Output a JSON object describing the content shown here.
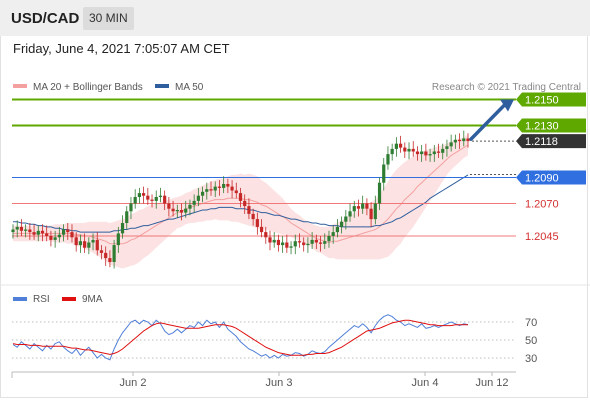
{
  "header": {
    "symbol": "USD/CAD",
    "timeframe": "30 MIN"
  },
  "datetime": "Friday, June 4, 2021 7:05:07 AM CET",
  "legend": [
    {
      "label": "MA 20 + Bollinger Bands",
      "color": "#f4a0a0"
    },
    {
      "label": "MA 50",
      "color": "#2f5e9e"
    }
  ],
  "copyright": "Research © 2021 Trading Central",
  "colors": {
    "up": "#2e7d32",
    "down": "#c62828",
    "resistance": "#5fa800",
    "pivot": "#2f6fe0",
    "support": "#f07878",
    "arrow": "#2f5e9e",
    "rsi": "#4f7fd8",
    "rsi_ma": "#e01010"
  },
  "chart_data": [
    {
      "type": "candlestick",
      "symbol": "USD/CAD",
      "timeframe": "30 MIN",
      "x_ticks": [
        "Jun 2",
        "Jun 3",
        "Jun 4",
        "Jun 12"
      ],
      "ylim": [
        1.2005,
        1.2165
      ],
      "current_price": "1.2118",
      "levels": [
        {
          "value": 1.215,
          "label": "1.2150",
          "kind": "resistance"
        },
        {
          "value": 1.213,
          "label": "1.2130",
          "kind": "resistance"
        },
        {
          "value": 1.209,
          "label": "1.2090",
          "kind": "pivot"
        },
        {
          "value": 1.207,
          "label": "1.2070",
          "kind": "support"
        },
        {
          "value": 1.2045,
          "label": "1.2045",
          "kind": "support"
        }
      ],
      "close_series": [
        1.205,
        1.2052,
        1.2049,
        1.205,
        1.2048,
        1.2046,
        1.2049,
        1.2047,
        1.2045,
        1.2042,
        1.2044,
        1.2046,
        1.205,
        1.2048,
        1.2044,
        1.2038,
        1.2041,
        1.2036,
        1.204,
        1.2042,
        1.2034,
        1.2032,
        1.2028,
        1.2025,
        1.2038,
        1.2047,
        1.2055,
        1.2064,
        1.207,
        1.2075,
        1.2078,
        1.2076,
        1.2073,
        1.2072,
        1.2075,
        1.2076,
        1.207,
        1.2066,
        1.2064,
        1.2065,
        1.2063,
        1.2066,
        1.2069,
        1.2072,
        1.2076,
        1.2079,
        1.2081,
        1.208,
        1.2083,
        1.2082,
        1.2085,
        1.2083,
        1.208,
        1.2078,
        1.2072,
        1.2068,
        1.2062,
        1.2058,
        1.2052,
        1.2048,
        1.2044,
        1.204,
        1.2042,
        1.2038,
        1.204,
        1.2036,
        1.2037,
        1.2041,
        1.204,
        1.2038,
        1.2039,
        1.2042,
        1.204,
        1.2039,
        1.2041,
        1.2045,
        1.2048,
        1.2052,
        1.2056,
        1.206,
        1.2064,
        1.2068,
        1.2066,
        1.207,
        1.2066,
        1.2058,
        1.207,
        1.2086,
        1.21,
        1.2108,
        1.2112,
        1.2116,
        1.2113,
        1.211,
        1.2112,
        1.211,
        1.2108,
        1.211,
        1.2107,
        1.2108,
        1.211,
        1.2109,
        1.2112,
        1.2114,
        1.2117,
        1.2119,
        1.2118,
        1.212,
        1.2118
      ],
      "ma20": [
        1.2047,
        1.2047,
        1.2047,
        1.2047,
        1.2047,
        1.2047,
        1.2047,
        1.2047,
        1.2047,
        1.2047,
        1.2047,
        1.2047,
        1.2047,
        1.2047,
        1.2047,
        1.2046,
        1.2046,
        1.2045,
        1.2045,
        1.2044,
        1.2043,
        1.2042,
        1.2041,
        1.2039,
        1.2039,
        1.2039,
        1.2039,
        1.204,
        1.2042,
        1.2043,
        1.2045,
        1.2047,
        1.2049,
        1.2051,
        1.2053,
        1.2055,
        1.2057,
        1.2059,
        1.2061,
        1.2063,
        1.2064,
        1.2066,
        1.2067,
        1.2068,
        1.2069,
        1.207,
        1.2071,
        1.2072,
        1.2073,
        1.2073,
        1.2073,
        1.2074,
        1.2074,
        1.2074,
        1.2074,
        1.2073,
        1.2073,
        1.2072,
        1.2071,
        1.2069,
        1.2068,
        1.2066,
        1.2064,
        1.2062,
        1.206,
        1.2058,
        1.2055,
        1.2053,
        1.2051,
        1.2049,
        1.2047,
        1.2045,
        1.2043,
        1.2042,
        1.2041,
        1.204,
        1.2041,
        1.2041,
        1.2042,
        1.2043,
        1.2044,
        1.2045,
        1.2046,
        1.2047,
        1.2048,
        1.2049,
        1.205,
        1.2052,
        1.2055,
        1.2058,
        1.2062,
        1.2066,
        1.2069,
        1.2073,
        1.2076,
        1.2079,
        1.2083,
        1.2086,
        1.2089,
        1.2092,
        1.2095,
        1.2098,
        1.2101,
        1.2104,
        1.2107,
        1.2109,
        1.2111,
        1.2113,
        1.2115
      ],
      "ma50": [
        1.2056,
        1.2056,
        1.2055,
        1.2055,
        1.2054,
        1.2054,
        1.2053,
        1.2053,
        1.2052,
        1.2052,
        1.2051,
        1.2051,
        1.205,
        1.205,
        1.2049,
        1.2049,
        1.2048,
        1.2048,
        1.2048,
        1.2048,
        1.2048,
        1.2048,
        1.2048,
        1.2048,
        1.2049,
        1.2049,
        1.205,
        1.205,
        1.2051,
        1.2051,
        1.2052,
        1.2053,
        1.2053,
        1.2054,
        1.2055,
        1.2056,
        1.2057,
        1.2058,
        1.2058,
        1.2059,
        1.206,
        1.2061,
        1.2062,
        1.2063,
        1.2064,
        1.2065,
        1.2065,
        1.2066,
        1.2066,
        1.2067,
        1.2067,
        1.2067,
        1.2067,
        1.2066,
        1.2066,
        1.2066,
        1.2065,
        1.2065,
        1.2064,
        1.2063,
        1.2063,
        1.2062,
        1.2061,
        1.2061,
        1.206,
        1.2059,
        1.2058,
        1.2058,
        1.2057,
        1.2056,
        1.2056,
        1.2055,
        1.2055,
        1.2054,
        1.2054,
        1.2053,
        1.2053,
        1.2053,
        1.2052,
        1.2052,
        1.2052,
        1.2052,
        1.2052,
        1.2052,
        1.2052,
        1.2052,
        1.2053,
        1.2053,
        1.2054,
        1.2055,
        1.2056,
        1.2058,
        1.2059,
        1.2061,
        1.2063,
        1.2065,
        1.2067,
        1.2069,
        1.2071,
        1.2074,
        1.2076,
        1.2078,
        1.208,
        1.2082,
        1.2084,
        1.2086,
        1.2088,
        1.209,
        1.2092
      ],
      "bollinger_halfwidth": [
        0.0006,
        0.0006,
        0.0006,
        0.0006,
        0.0006,
        0.0006,
        0.0006,
        0.0006,
        0.0006,
        0.0006,
        0.0007,
        0.0007,
        0.0007,
        0.0008,
        0.0008,
        0.0009,
        0.0009,
        0.001,
        0.0011,
        0.0012,
        0.0013,
        0.0014,
        0.0015,
        0.0016,
        0.0017,
        0.0018,
        0.0019,
        0.0019,
        0.002,
        0.002,
        0.002,
        0.0019,
        0.0019,
        0.0018,
        0.0017,
        0.0016,
        0.0015,
        0.0014,
        0.0013,
        0.0012,
        0.0012,
        0.0012,
        0.0012,
        0.0013,
        0.0013,
        0.0014,
        0.0014,
        0.0015,
        0.0015,
        0.0016,
        0.0016,
        0.0017,
        0.0018,
        0.0018,
        0.0019,
        0.0019,
        0.002,
        0.002,
        0.002,
        0.0019,
        0.0018,
        0.0017,
        0.0016,
        0.0015,
        0.0014,
        0.0012,
        0.0011,
        0.001,
        0.001,
        0.0009,
        0.0009,
        0.0009,
        0.001,
        0.001,
        0.0011,
        0.0012,
        0.0013,
        0.0014,
        0.0015,
        0.0016,
        0.0017,
        0.0018,
        0.0019,
        0.002,
        0.0021,
        0.0022,
        0.0023,
        0.0025,
        0.0027,
        0.0029,
        0.003,
        0.003,
        0.003,
        0.0029,
        0.0028,
        0.0027,
        0.0026,
        0.0024,
        0.0022,
        0.002,
        0.0018,
        0.0016,
        0.0014,
        0.0012,
        0.0011,
        0.001,
        0.0009,
        0.0008,
        0.0008
      ],
      "target_arrow": {
        "from": 1.2118,
        "to": 1.215
      }
    },
    {
      "type": "line",
      "legend": [
        "RSI",
        "9MA"
      ],
      "ylim": [
        20,
        80
      ],
      "y_ticks": [
        30,
        50,
        70
      ],
      "rsi": [
        45,
        42,
        48,
        44,
        40,
        46,
        42,
        38,
        44,
        40,
        46,
        48,
        42,
        38,
        35,
        40,
        33,
        38,
        42,
        36,
        30,
        34,
        30,
        28,
        40,
        50,
        58,
        64,
        70,
        72,
        68,
        72,
        70,
        66,
        72,
        68,
        60,
        56,
        58,
        62,
        58,
        62,
        66,
        64,
        70,
        66,
        72,
        68,
        70,
        64,
        70,
        62,
        58,
        54,
        48,
        44,
        40,
        38,
        35,
        32,
        34,
        30,
        33,
        30,
        34,
        32,
        33,
        36,
        35,
        32,
        34,
        38,
        36,
        35,
        37,
        42,
        46,
        50,
        54,
        58,
        62,
        66,
        64,
        68,
        64,
        58,
        66,
        72,
        76,
        78,
        76,
        72,
        70,
        66,
        68,
        66,
        64,
        68,
        63,
        64,
        66,
        64,
        66,
        68,
        70,
        68,
        66,
        68,
        67
      ],
      "ma9": [
        46,
        45,
        45,
        45,
        44,
        44,
        44,
        43,
        43,
        43,
        43,
        43,
        43,
        42,
        41,
        41,
        40,
        39,
        39,
        38,
        37,
        36,
        35,
        34,
        35,
        37,
        40,
        44,
        48,
        52,
        56,
        60,
        63,
        66,
        68,
        69,
        68,
        67,
        66,
        65,
        64,
        63,
        63,
        63,
        63,
        64,
        65,
        66,
        67,
        67,
        67,
        66,
        65,
        63,
        60,
        57,
        54,
        51,
        48,
        45,
        42,
        40,
        38,
        36,
        35,
        34,
        33,
        33,
        33,
        33,
        34,
        34,
        35,
        35,
        35,
        36,
        38,
        40,
        42,
        45,
        48,
        51,
        54,
        57,
        60,
        61,
        62,
        63,
        65,
        67,
        69,
        70,
        71,
        72,
        72,
        71,
        70,
        69,
        68,
        67,
        67,
        66,
        66,
        66,
        66,
        67,
        67,
        67,
        67
      ]
    }
  ]
}
